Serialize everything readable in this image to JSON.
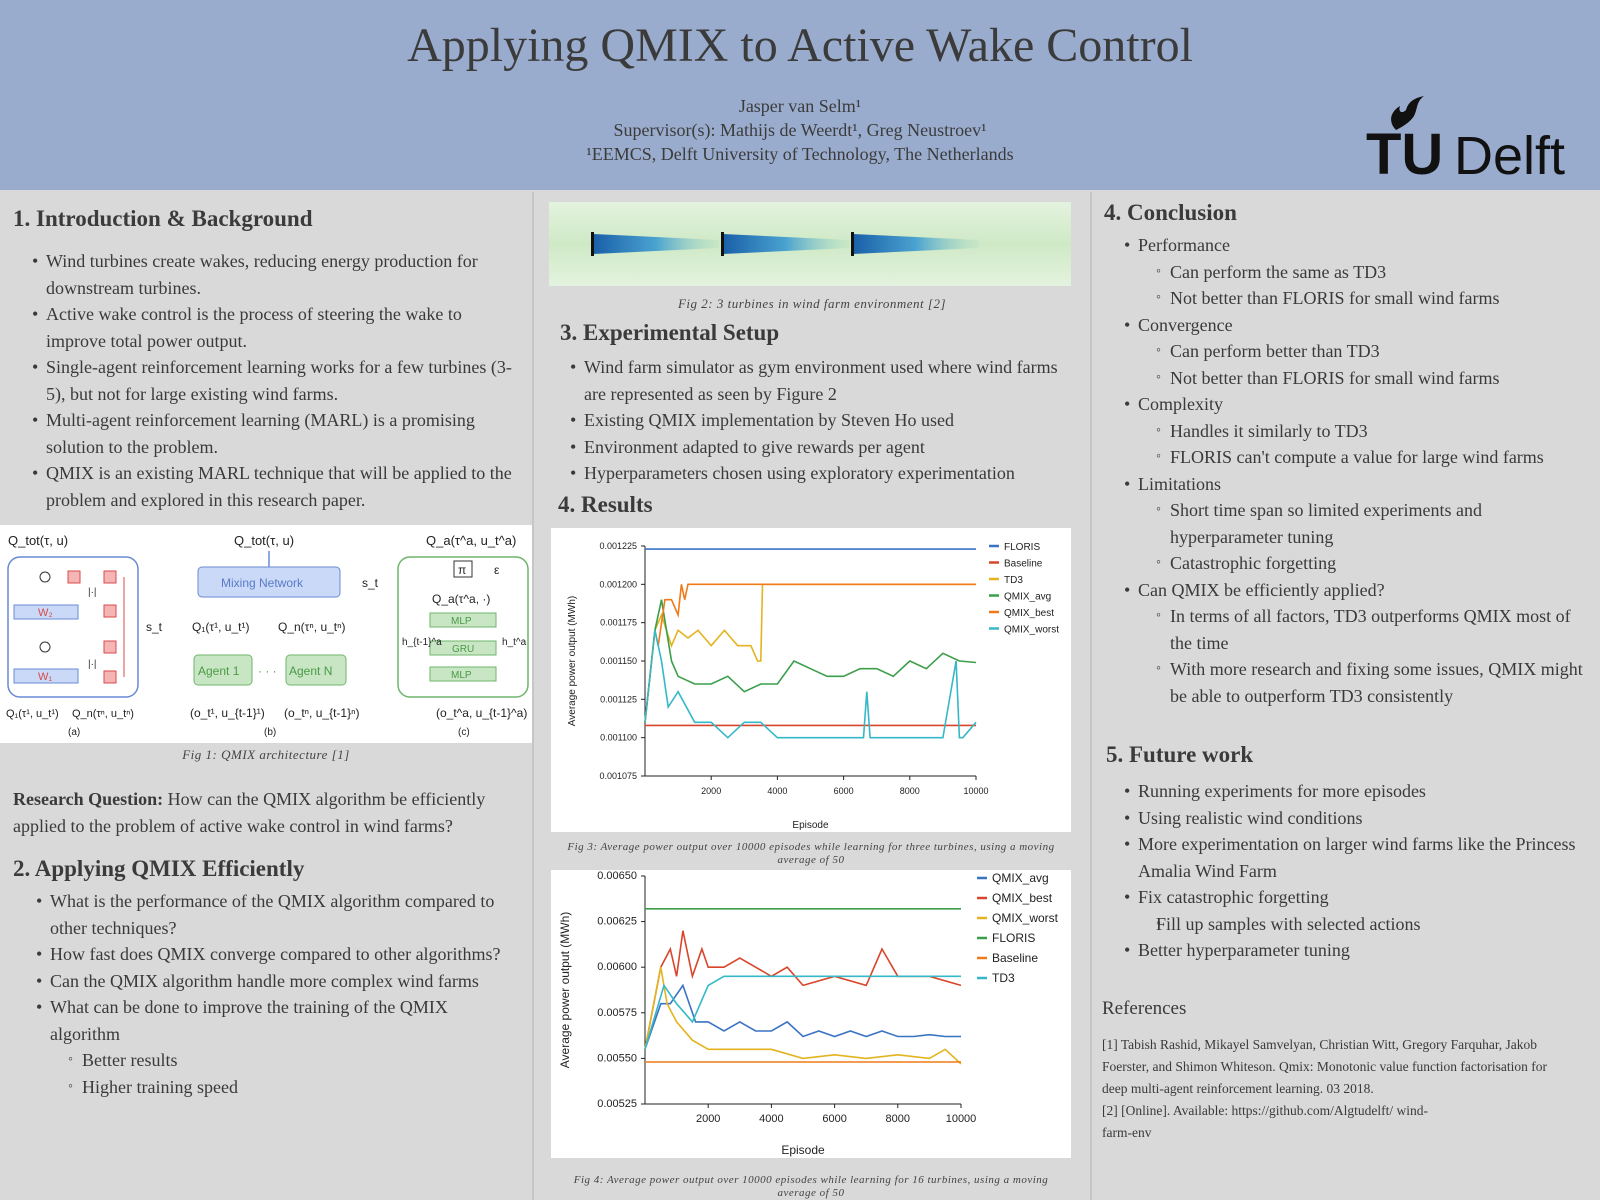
{
  "header": {
    "title": "Applying QMIX to Active Wake Control",
    "author": "Jasper van Selm¹",
    "supervisors": "Supervisor(s): Mathijs de Weerdt¹, Greg Neustroev¹",
    "affiliation": "¹EEMCS, Delft University of Technology, The Netherlands",
    "logo_text": "TUDelft",
    "logo_tu": "TU",
    "logo_delft": "Delft"
  },
  "intro": {
    "heading": "1. Introduction & Background",
    "bullets": [
      "Wind turbines create wakes, reducing energy production for downstream turbines.",
      "Active wake control is the process of steering the wake to improve total power output.",
      "Single-agent reinforcement learning works for a few turbines (3-5), but not for large existing wind farms.",
      "Multi-agent reinforcement learning (MARL) is a promising solution to the problem.",
      "QMIX is an existing MARL technique that will be applied to the problem and explored in this research paper."
    ]
  },
  "fig1": {
    "caption": "Fig 1: QMIX architecture [1]",
    "labels": {
      "qtot_a": "Q_tot(τ, u)",
      "qtot_b": "Q_tot(τ, u)",
      "qa_c": "Q_a(τ^a, u_t^a)",
      "mixing": "Mixing Network",
      "st_a": "s_t",
      "st_b": "s_t",
      "w2": "W₂",
      "w1": "W₁",
      "abs1": "|·|",
      "abs2": "|·|",
      "q1": "Q₁(τ¹, u_t¹)",
      "qn": "Q_n(τⁿ, u_tⁿ)",
      "q1_a": "Q₁(τ¹, u_t¹)",
      "qn_a": "Q_n(τⁿ, u_tⁿ)",
      "agent1": "Agent 1",
      "agentn": "Agent N",
      "dots": "· · ·",
      "o1": "(o_t¹, u_{t-1}¹)",
      "on": "(o_tⁿ, u_{t-1}ⁿ)",
      "oa": "(o_t^a, u_{t-1}^a)",
      "pi": "π",
      "eps": "ε",
      "qa_dot": "Q_a(τ^a, ·)",
      "mlp1": "MLP",
      "gru": "GRU",
      "mlp2": "MLP",
      "h_prev": "h_{t-1}^a",
      "h_t": "h_t^a",
      "sub_a": "(a)",
      "sub_b": "(b)",
      "sub_c": "(c)"
    }
  },
  "research_question": {
    "label": "Research Question:",
    "text": " How can the QMIX algorithm be efficiently applied to the problem of active wake control in wind farms?"
  },
  "applying": {
    "heading": "2. Applying QMIX Efficiently",
    "items": [
      {
        "level": 1,
        "text": "What is the performance of the QMIX algorithm compared to other techniques?"
      },
      {
        "level": 1,
        "text": "How fast does QMIX converge compared to other algorithms?"
      },
      {
        "level": 1,
        "text": "Can the QMIX algorithm handle more complex wind farms"
      },
      {
        "level": 1,
        "text": "What can be done to improve the training of the QMIX algorithm"
      },
      {
        "level": 2,
        "text": "Better results"
      },
      {
        "level": 2,
        "text": "Higher training speed"
      }
    ]
  },
  "fig2": {
    "caption": "Fig 2: 3 turbines in wind farm environment [2]"
  },
  "setup": {
    "heading": "3. Experimental Setup",
    "bullets": [
      "Wind farm simulator as gym environment used where wind farms are represented as seen by Figure 2",
      "Existing QMIX implementation by Steven Ho used",
      "Environment adapted to give rewards per agent",
      "Hyperparameters chosen using exploratory experimentation"
    ]
  },
  "results": {
    "heading": "4. Results",
    "fig3_caption": "Fig 3:  Average power output over 10000 episodes while learning for three turbines, using a moving average of 50",
    "fig4_caption": "Fig 4:  Average power output over 10000 episodes while learning for 16 turbines, using a moving average of 50"
  },
  "chart_data": [
    {
      "type": "line",
      "xlabel": "Episode",
      "ylabel": "Average power output (MWh)",
      "xlim": [
        0,
        10000
      ],
      "ylim": [
        0.001075,
        0.001225
      ],
      "xticks": [
        "2000",
        "4000",
        "6000",
        "8000",
        "10000"
      ],
      "yticks": [
        "0.001075",
        "0.001100",
        "0.001125",
        "0.001150",
        "0.001175",
        "0.001200",
        "0.001225"
      ],
      "legend": "top-right",
      "series": [
        {
          "name": "FLORIS",
          "color": "#3b73c4",
          "x": [
            0,
            10000
          ],
          "y": [
            0.001223,
            0.001223
          ]
        },
        {
          "name": "Baseline",
          "color": "#d9452b",
          "x": [
            0,
            10000
          ],
          "y": [
            0.001108,
            0.001108
          ]
        },
        {
          "name": "TD3",
          "color": "#e3b420",
          "x": [
            0,
            300,
            500,
            800,
            1000,
            1300,
            1600,
            2000,
            2400,
            2800,
            3200,
            3400,
            3500,
            3550,
            3600,
            4000,
            10000
          ],
          "y": [
            0.00111,
            0.00117,
            0.00118,
            0.00116,
            0.00117,
            0.001165,
            0.00117,
            0.00116,
            0.00117,
            0.00116,
            0.00116,
            0.00115,
            0.00115,
            0.0012,
            0.0012,
            0.0012,
            0.0012
          ]
        },
        {
          "name": "QMIX_avg",
          "color": "#3b9e4a",
          "x": [
            0,
            300,
            500,
            800,
            1000,
            1500,
            2000,
            2500,
            3000,
            3500,
            4000,
            4500,
            5000,
            5500,
            6000,
            6500,
            7000,
            7500,
            8000,
            8500,
            9000,
            9500,
            10000
          ],
          "y": [
            0.00111,
            0.00117,
            0.00119,
            0.00115,
            0.00114,
            0.001135,
            0.001135,
            0.00114,
            0.00113,
            0.001135,
            0.001135,
            0.00115,
            0.001145,
            0.00114,
            0.00114,
            0.001145,
            0.001145,
            0.00114,
            0.00115,
            0.001145,
            0.001155,
            0.00115,
            0.001149
          ]
        },
        {
          "name": "QMIX_best",
          "color": "#f07a19",
          "x": [
            0,
            300,
            400,
            600,
            800,
            1000,
            1100,
            1200,
            1300,
            1400,
            10000
          ],
          "y": [
            0.00111,
            0.00117,
            0.00116,
            0.00119,
            0.00119,
            0.00118,
            0.0012,
            0.00119,
            0.0012,
            0.0012,
            0.0012
          ]
        },
        {
          "name": "QMIX_worst",
          "color": "#35b8c8",
          "x": [
            0,
            300,
            500,
            700,
            1000,
            1500,
            2000,
            2500,
            3000,
            3500,
            4000,
            5000,
            6000,
            6600,
            6700,
            6800,
            7000,
            8000,
            9000,
            9400,
            9500,
            9600,
            10000
          ],
          "y": [
            0.00111,
            0.00117,
            0.00115,
            0.00112,
            0.00113,
            0.00111,
            0.00111,
            0.0011,
            0.00111,
            0.00111,
            0.0011,
            0.0011,
            0.0011,
            0.0011,
            0.00113,
            0.0011,
            0.0011,
            0.0011,
            0.0011,
            0.00115,
            0.0011,
            0.0011,
            0.00111
          ]
        }
      ]
    },
    {
      "type": "line",
      "xlabel": "Episode",
      "ylabel": "Average power output (MWh)",
      "xlim": [
        0,
        10000
      ],
      "ylim": [
        0.00525,
        0.0065
      ],
      "xticks": [
        "2000",
        "4000",
        "6000",
        "8000",
        "10000"
      ],
      "yticks": [
        "0.00525",
        "0.00550",
        "0.00575",
        "0.00600",
        "0.00625",
        "0.00650"
      ],
      "legend": "top-right",
      "series": [
        {
          "name": "QMIX_avg",
          "color": "#3b73c4",
          "x": [
            0,
            500,
            800,
            1200,
            1600,
            2000,
            2500,
            3000,
            3500,
            4000,
            4500,
            5000,
            5500,
            6000,
            6500,
            7000,
            7500,
            8000,
            8500,
            9000,
            9500,
            10000
          ],
          "y": [
            0.00555,
            0.0058,
            0.0058,
            0.0059,
            0.0057,
            0.0057,
            0.00565,
            0.0057,
            0.00565,
            0.00565,
            0.0057,
            0.00562,
            0.00565,
            0.00562,
            0.00565,
            0.00562,
            0.00565,
            0.00562,
            0.00562,
            0.00563,
            0.00562,
            0.00562
          ]
        },
        {
          "name": "QMIX_best",
          "color": "#d9452b",
          "x": [
            0,
            500,
            800,
            1000,
            1200,
            1500,
            1800,
            2000,
            2500,
            3000,
            3500,
            4000,
            4500,
            5000,
            6000,
            7000,
            7500,
            8000,
            9000,
            10000
          ],
          "y": [
            0.00555,
            0.006,
            0.0061,
            0.00595,
            0.0062,
            0.00595,
            0.0061,
            0.006,
            0.006,
            0.00605,
            0.006,
            0.00595,
            0.006,
            0.0059,
            0.00595,
            0.0059,
            0.0061,
            0.00595,
            0.00595,
            0.0059
          ]
        },
        {
          "name": "QMIX_worst",
          "color": "#e3b420",
          "x": [
            0,
            500,
            700,
            1000,
            1500,
            2000,
            3000,
            4000,
            5000,
            6000,
            7000,
            8000,
            9000,
            9500,
            10000
          ],
          "y": [
            0.00555,
            0.006,
            0.0058,
            0.0057,
            0.0056,
            0.00555,
            0.00555,
            0.00555,
            0.0055,
            0.00552,
            0.0055,
            0.00552,
            0.0055,
            0.00555,
            0.00547
          ]
        },
        {
          "name": "FLORIS",
          "color": "#3b9e4a",
          "x": [
            0,
            10000
          ],
          "y": [
            0.00632,
            0.00632
          ]
        },
        {
          "name": "Baseline",
          "color": "#f07a19",
          "x": [
            0,
            10000
          ],
          "y": [
            0.00548,
            0.00548
          ]
        },
        {
          "name": "TD3",
          "color": "#35b8c8",
          "x": [
            0,
            600,
            1000,
            1500,
            2000,
            2500,
            10000
          ],
          "y": [
            0.00555,
            0.0059,
            0.0058,
            0.0057,
            0.0059,
            0.00595,
            0.00595
          ]
        }
      ]
    }
  ],
  "conclusion": {
    "heading": "4. Conclusion",
    "items": [
      {
        "level": 1,
        "text": "Performance"
      },
      {
        "level": 2,
        "text": "Can perform the same as TD3"
      },
      {
        "level": 2,
        "text": "Not better than FLORIS for small wind farms"
      },
      {
        "level": 1,
        "text": "Convergence"
      },
      {
        "level": 2,
        "text": "Can perform better than TD3"
      },
      {
        "level": 2,
        "text": "Not better than FLORIS for small wind farms"
      },
      {
        "level": 1,
        "text": "Complexity"
      },
      {
        "level": 2,
        "text": "Handles it similarly to TD3"
      },
      {
        "level": 2,
        "text": "FLORIS can't compute a value for large wind farms"
      },
      {
        "level": 1,
        "text": " Limitations"
      },
      {
        "level": 2,
        "text": "Short time span so limited experiments and hyperparameter tuning"
      },
      {
        "level": 2,
        "text": "Catastrophic forgetting"
      },
      {
        "level": 1,
        "text": "Can QMIX be efficiently applied?"
      },
      {
        "level": 2,
        "text": "In terms of all factors, TD3 outperforms QMIX most of the time"
      },
      {
        "level": 2,
        "text": "With more research and fixing some issues, QMIX might be able to outperform TD3 consistently"
      }
    ]
  },
  "future": {
    "heading": "5. Future work",
    "items": [
      {
        "level": 1,
        "text": "Running experiments for more episodes"
      },
      {
        "level": 1,
        "text": "Using realistic wind conditions"
      },
      {
        "level": 1,
        "text": "More experimentation on larger wind farms like the Princess Amalia Wind Farm"
      },
      {
        "level": 1,
        "text": "Fix catastrophic forgetting"
      },
      {
        "level": 2,
        "text": "Fill up samples with selected actions"
      },
      {
        "level": 1,
        "text": "Better hyperparameter tuning"
      }
    ]
  },
  "references": {
    "heading": "References",
    "ref1": "[1] Tabish Rashid, Mikayel Samvelyan, Christian Witt, Gregory Farquhar, Jakob Foerster, and Shimon Whiteson. Qmix: Monotonic value function factorisation for deep multi-agent reinforcement learning. 03 2018.",
    "ref2": "[2] [Online]. Available: https://github.com/Algtudelft/ wind-farm-env"
  },
  "colors": {
    "header_bg": "#9aaccd",
    "page_bg": "#d9d9d9",
    "tu_cyan": "#00a6d6"
  }
}
